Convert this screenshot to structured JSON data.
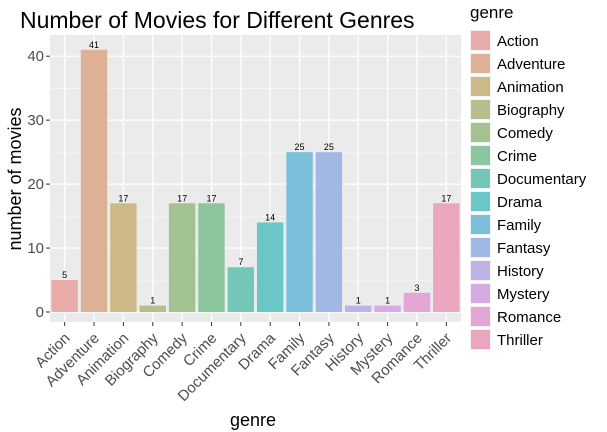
{
  "chart_data": {
    "type": "bar",
    "title": "Number of Movies for Different Genres",
    "xlabel": "genre",
    "ylabel": "number of movies",
    "categories": [
      "Action",
      "Adventure",
      "Animation",
      "Biography",
      "Comedy",
      "Crime",
      "Documentary",
      "Drama",
      "Family",
      "Fantasy",
      "History",
      "Mystery",
      "Romance",
      "Thriller"
    ],
    "values": [
      5,
      41,
      17,
      1,
      17,
      17,
      7,
      14,
      25,
      25,
      1,
      1,
      3,
      17
    ],
    "colors": [
      "#E8ABA9",
      "#DDB196",
      "#CDB987",
      "#B5BE8C",
      "#A2C28F",
      "#8CC69E",
      "#74C7B6",
      "#6BC6C8",
      "#7BBFDA",
      "#A0B8E3",
      "#BCB4E6",
      "#D4ACE4",
      "#E3A6D5",
      "#E9A6BE"
    ],
    "ylim": [
      0,
      43
    ],
    "yticks": [
      0,
      10,
      20,
      30,
      40
    ],
    "grid": true,
    "legend": {
      "title": "genre",
      "position": "right"
    },
    "panel_background": "#EBEBEB",
    "grid_color": "#FFFFFF"
  }
}
